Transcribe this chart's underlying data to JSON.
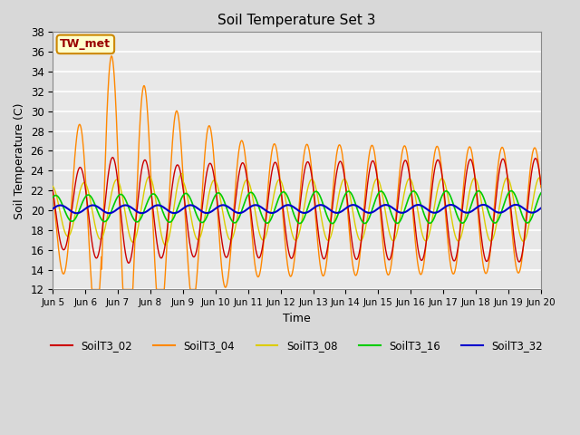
{
  "title": "Soil Temperature Set 3",
  "xlabel": "Time",
  "ylabel": "Soil Temperature (C)",
  "ylim": [
    12,
    38
  ],
  "xtick_labels": [
    "Jun 5",
    "Jun 6",
    "Jun 7",
    "Jun 8",
    "Jun 9",
    "Jun 10",
    "Jun 11",
    "Jun 12",
    "Jun 13",
    "Jun 14",
    "Jun 15",
    "Jun 16",
    "Jun 17",
    "Jun 18",
    "Jun 19",
    "Jun 20"
  ],
  "colors": {
    "SoilT3_02": "#cc0000",
    "SoilT3_04": "#ff8800",
    "SoilT3_08": "#ddcc00",
    "SoilT3_16": "#00cc00",
    "SoilT3_32": "#0000cc"
  },
  "bg_color": "#d8d8d8",
  "plot_bg": "#e8e8e8",
  "grid_color": "#ffffff",
  "annotation_text": "TW_met",
  "annotation_bg": "#ffffcc",
  "annotation_border": "#cc8800",
  "annotation_text_color": "#990000",
  "lw": 1.0
}
